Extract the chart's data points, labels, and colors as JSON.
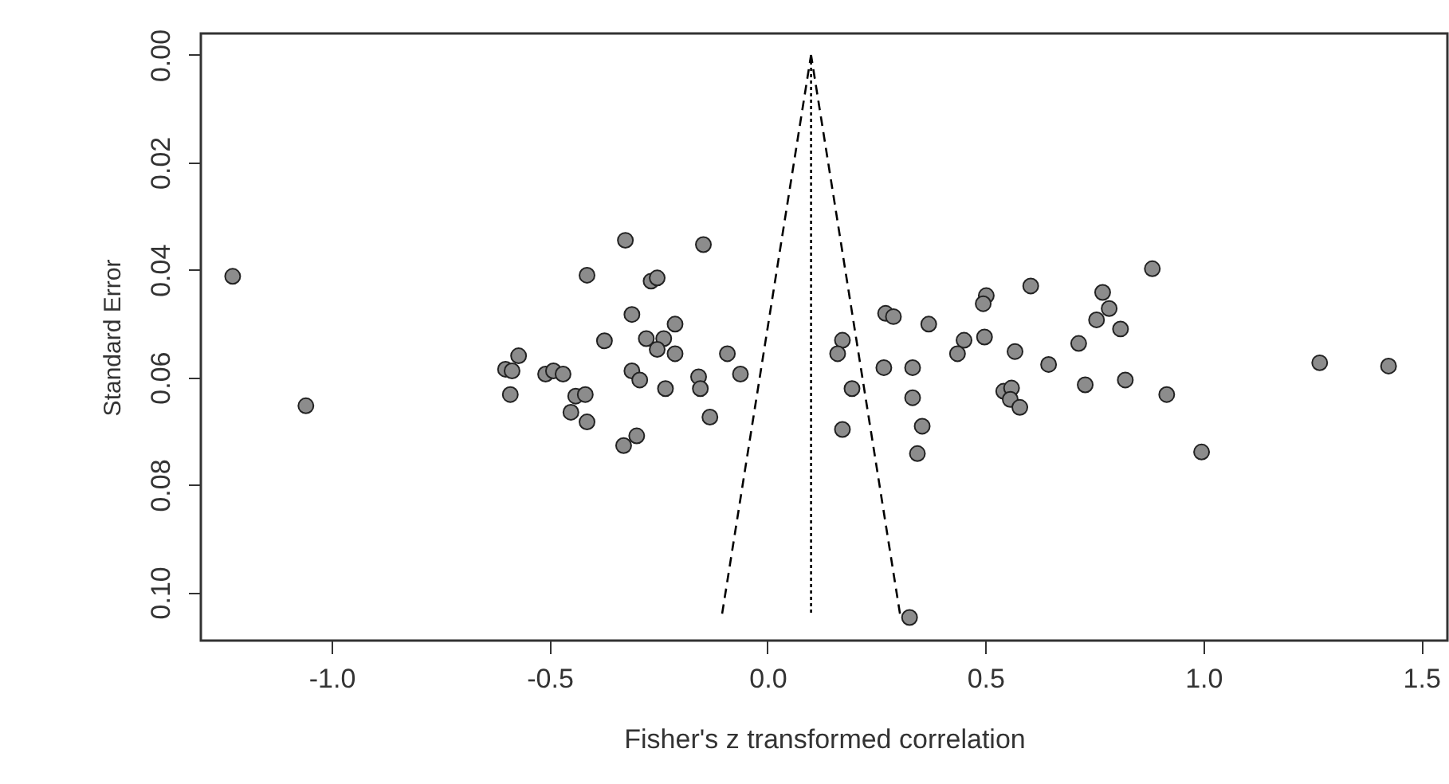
{
  "chart_data": {
    "type": "scatter",
    "xlabel": "Fisher's z transformed correlation",
    "ylabel": "Standard Error",
    "xlim": [
      -1.3,
      1.56
    ],
    "ylim": [
      0.109,
      -0.004
    ],
    "xticks": [
      {
        "value": -1.0,
        "label": "-1.0"
      },
      {
        "value": -0.5,
        "label": "-0.5"
      },
      {
        "value": 0.0,
        "label": "0.0"
      },
      0.5,
      {
        "value": 1.0,
        "label": "1.0"
      },
      1.5
    ],
    "yticks": [
      {
        "value": 0.0,
        "label": "0.00"
      },
      0.02,
      0.04,
      0.06,
      0.08,
      {
        "value": 0.1,
        "label": "0.10"
      }
    ],
    "series": [
      {
        "marker": "circle",
        "color": "#8c8c8c",
        "x": [
          -1.227,
          -1.059,
          -0.326,
          -0.147,
          -0.414,
          -0.267,
          -0.253,
          -0.311,
          -0.212,
          -0.374,
          -0.278,
          -0.238,
          -0.253,
          -0.212,
          -0.092,
          -0.571,
          -0.601,
          -0.586,
          -0.509,
          -0.491,
          -0.469,
          -0.311,
          -0.293,
          -0.234,
          -0.158,
          -0.154,
          -0.59,
          -0.44,
          -0.418,
          -0.451,
          -0.414,
          -0.3,
          -0.33,
          -0.132,
          -0.062,
          0.172,
          0.161,
          0.271,
          0.289,
          0.37,
          0.502,
          0.495,
          0.604,
          0.451,
          0.436,
          0.498,
          0.568,
          0.645,
          0.714,
          0.769,
          0.784,
          0.755,
          0.81,
          0.883,
          1.267,
          1.425,
          0.194,
          0.267,
          0.333,
          0.333,
          0.542,
          0.56,
          0.557,
          0.579,
          0.729,
          0.821,
          0.916,
          0.172,
          0.355,
          0.344,
          0.996,
          0.326
        ],
        "values": [
          0.0412,
          0.0653,
          0.0345,
          0.0353,
          0.041,
          0.0421,
          0.0415,
          0.0483,
          0.0501,
          0.0532,
          0.0528,
          0.0528,
          0.0548,
          0.0556,
          0.0556,
          0.056,
          0.0585,
          0.0588,
          0.0594,
          0.0588,
          0.0594,
          0.0588,
          0.0605,
          0.0621,
          0.0599,
          0.0621,
          0.0632,
          0.0635,
          0.0632,
          0.0665,
          0.0683,
          0.0709,
          0.0727,
          0.0674,
          0.0594,
          0.0531,
          0.0556,
          0.0481,
          0.0487,
          0.0501,
          0.0448,
          0.0463,
          0.043,
          0.0531,
          0.0556,
          0.0525,
          0.0552,
          0.0576,
          0.0537,
          0.0442,
          0.0472,
          0.0493,
          0.051,
          0.0398,
          0.0573,
          0.0579,
          0.0621,
          0.0582,
          0.0582,
          0.0638,
          0.0626,
          0.062,
          0.0641,
          0.0656,
          0.0614,
          0.0605,
          0.0632,
          0.0697,
          0.0691,
          0.0742,
          0.0739,
          0.1047
        ]
      },
      {
        "type": "line",
        "color": "#000000",
        "line_style": "dashed",
        "x": [
          -0.104,
          0.1
        ],
        "values": [
          0.104,
          0.0
        ]
      },
      {
        "type": "line",
        "color": "#000000",
        "line_style": "dashed",
        "x": [
          0.304,
          0.1
        ],
        "values": [
          0.104,
          0.0
        ]
      },
      {
        "type": "line",
        "color": "#000000",
        "line_style": "dotted",
        "x": [
          0.1,
          0.1
        ],
        "values": [
          0.0,
          0.104
        ]
      }
    ]
  }
}
